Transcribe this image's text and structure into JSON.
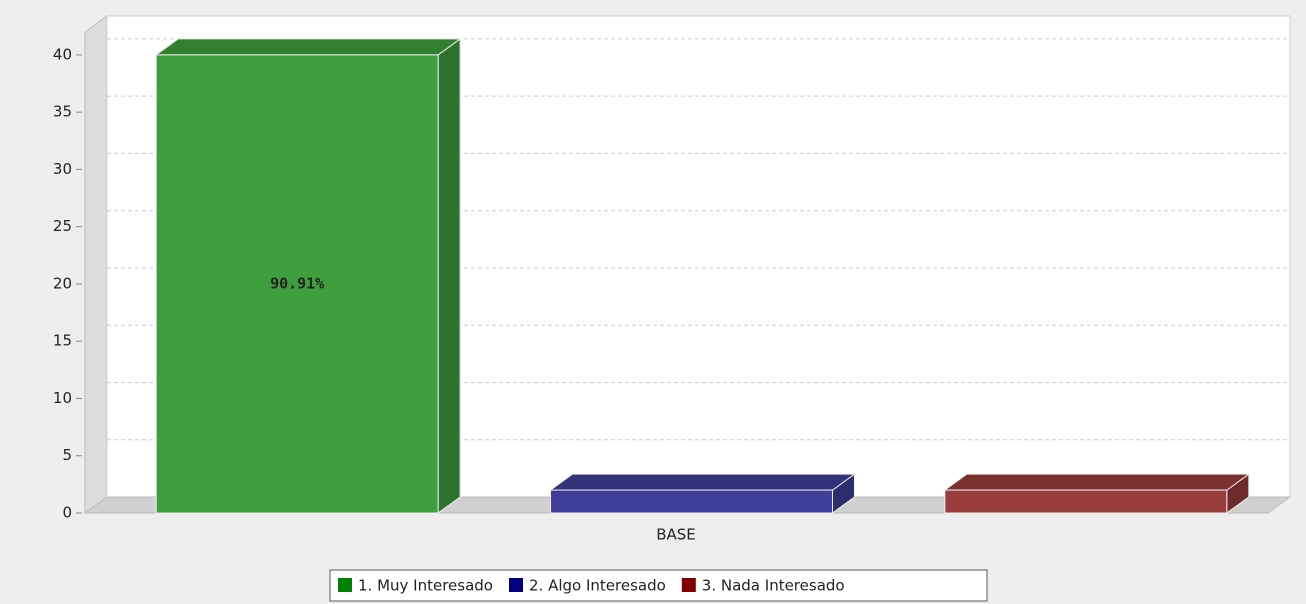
{
  "chart_data": {
    "type": "bar3d",
    "categories": [
      "BASE"
    ],
    "series": [
      {
        "name": "1. Muy Interesado",
        "color": "#3f9f3f",
        "legend_color": "#008000",
        "values": [
          40
        ]
      },
      {
        "name": "2. Algo Interesado",
        "color": "#3e3e98",
        "legend_color": "#000080",
        "values": [
          2
        ]
      },
      {
        "name": "3. Nada Interesado",
        "color": "#9a3c3c",
        "legend_color": "#800000",
        "values": [
          2
        ]
      }
    ],
    "annotation": "90.91%",
    "ylim": [
      0,
      42
    ],
    "yticks": [
      0,
      5,
      10,
      15,
      20,
      25,
      30,
      35,
      40
    ],
    "grid": true
  }
}
